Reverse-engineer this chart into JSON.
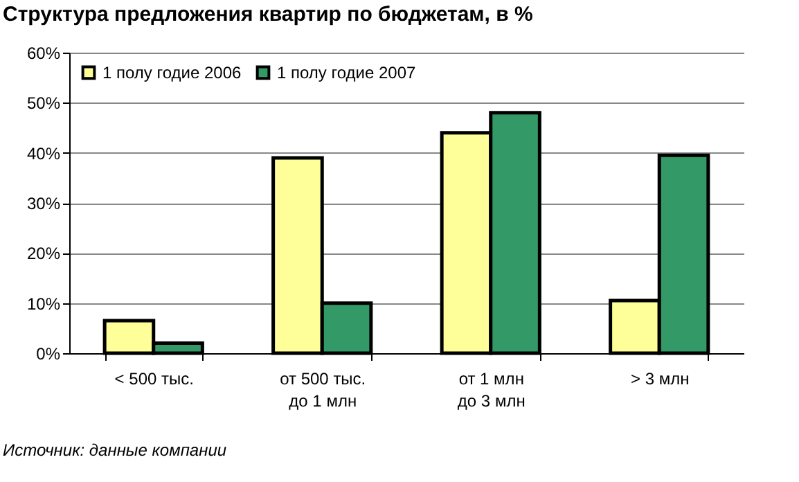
{
  "chart_data": {
    "type": "bar",
    "title": "Структура предложения квартир по бюджетам, в %",
    "categories": [
      "< 500 тыс.",
      "от 500 тыс.\nдо 1 млн",
      "от 1 млн\nдо 3 млн",
      "> 3 млн"
    ],
    "series": [
      {
        "name": "1 полу годие 2006",
        "color": "#ffff99",
        "values": [
          6.5,
          39,
          44,
          10.5
        ]
      },
      {
        "name": "1 полу годие 2007",
        "color": "#339966",
        "values": [
          2,
          10,
          48,
          39.5
        ]
      }
    ],
    "ylim": [
      0,
      60
    ],
    "yticks": [
      {
        "value": 0,
        "label": "0%"
      },
      {
        "value": 10,
        "label": "10%"
      },
      {
        "value": 20,
        "label": "20%"
      },
      {
        "value": 30,
        "label": "30%"
      },
      {
        "value": 40,
        "label": "40%"
      },
      {
        "value": 50,
        "label": "50%"
      },
      {
        "value": 60,
        "label": "60%"
      }
    ],
    "grid": "y",
    "legend": "top left",
    "annotations": [
      "Источник: данные компании"
    ]
  }
}
